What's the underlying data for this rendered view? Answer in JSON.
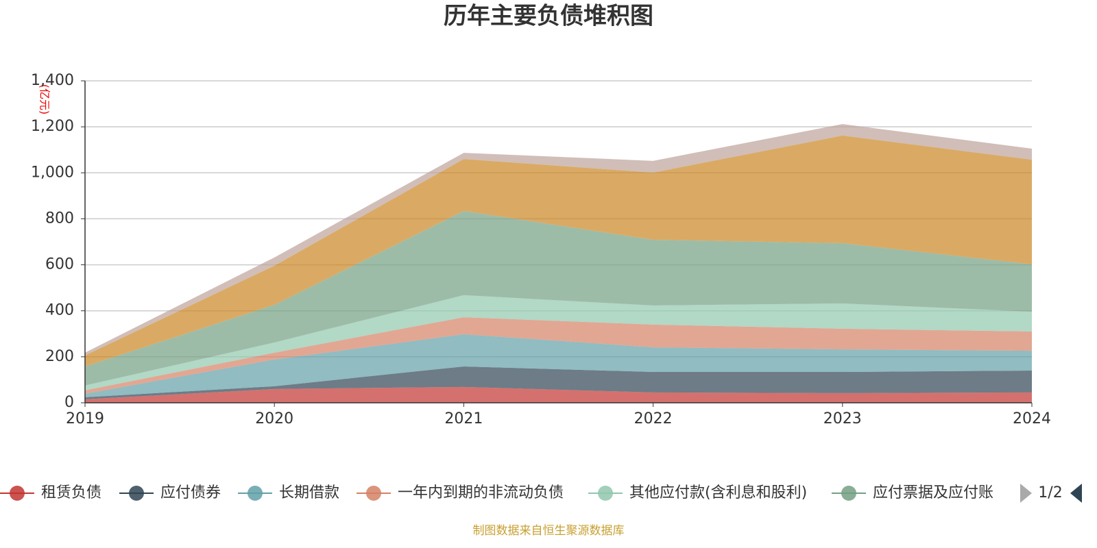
{
  "chart_data": {
    "type": "stacked_area",
    "title": "历年主要负债堆积图",
    "y_unit": "(亿元)",
    "categories": [
      "2019",
      "2020",
      "2021",
      "2022",
      "2023",
      "2024"
    ],
    "series": [
      {
        "name": "租赁负债",
        "color": "#c23531",
        "values": [
          15,
          60,
          69,
          45,
          42,
          45
        ]
      },
      {
        "name": "应付债券",
        "color": "#2f4554",
        "values": [
          9,
          12,
          89,
          89,
          92,
          95
        ]
      },
      {
        "name": "长期借款",
        "color": "#61a0a8",
        "values": [
          15,
          116,
          140,
          107,
          98,
          86
        ]
      },
      {
        "name": "一年内到期的非流动负债",
        "color": "#d48265",
        "values": [
          15,
          30,
          74,
          99,
          90,
          84
        ]
      },
      {
        "name": "其他应付款(含利息和股利)",
        "color": "#91c7ae",
        "values": [
          21,
          44,
          96,
          83,
          110,
          86
        ]
      },
      {
        "name": "应付票据及应付账",
        "color": "#749f83",
        "values": [
          83,
          164,
          366,
          286,
          262,
          206
        ]
      },
      {
        "color": "#ca8622",
        "values": [
          48,
          170,
          226,
          292,
          468,
          455
        ]
      },
      {
        "color": "#bda29a",
        "values": [
          12,
          36,
          27,
          51,
          50,
          48
        ]
      }
    ],
    "ylim": [
      0,
      1400
    ],
    "yticks": [
      0,
      200,
      400,
      600,
      800,
      {
        "value": 1000,
        "label": "1,000"
      },
      {
        "value": 1200,
        "label": "1,200"
      },
      {
        "value": 1400,
        "label": "1,400"
      }
    ],
    "grid": true,
    "legend_page": "1/2",
    "footer": "制图数据来自恒生聚源数据库"
  }
}
